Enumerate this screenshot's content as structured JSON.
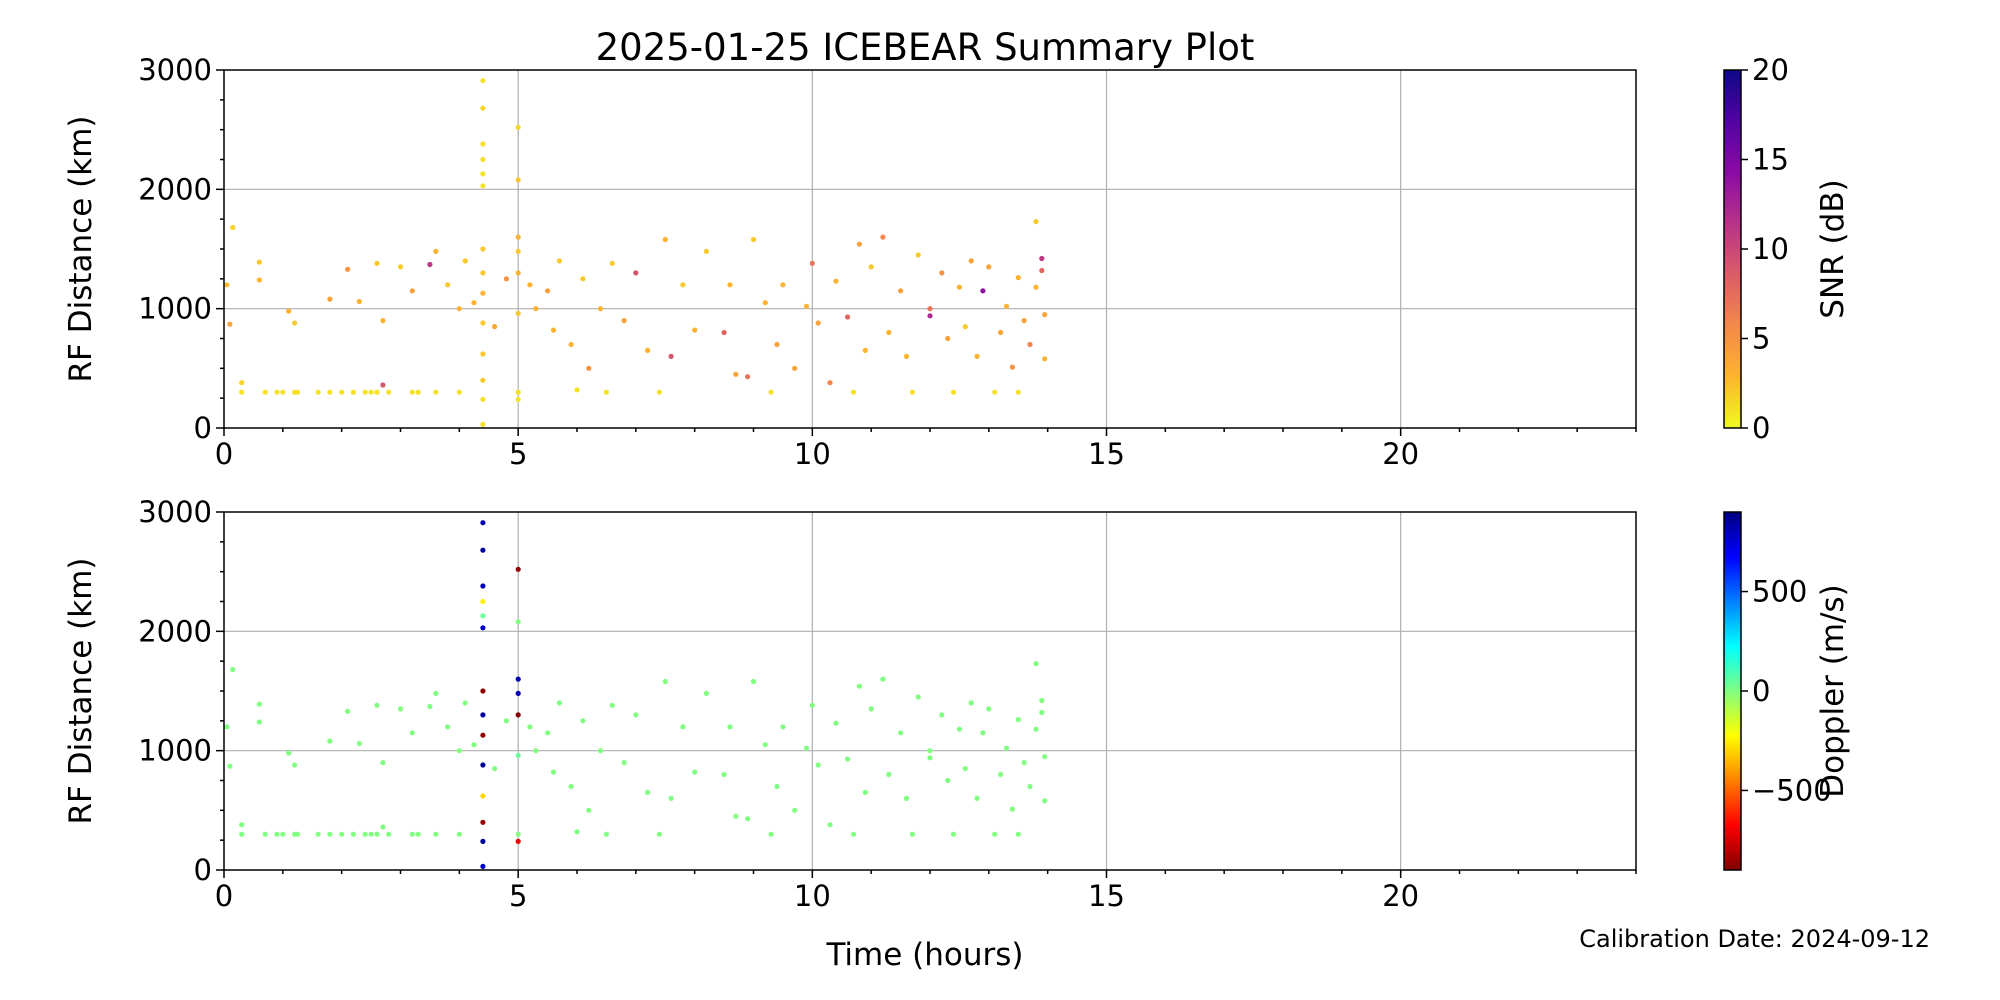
{
  "figure": {
    "title": "2025-01-25 ICEBEAR Summary Plot",
    "calibration_label": "Calibration Date: 2024-09-12"
  },
  "chart_data": [
    {
      "type": "scatter",
      "id": "snr",
      "ylabel": "RF Distance (km)",
      "xlabel": "",
      "xlim": [
        0,
        24
      ],
      "ylim": [
        0,
        3000
      ],
      "xticks": [
        0,
        5,
        10,
        15,
        20
      ],
      "yticks": [
        0,
        1000,
        2000,
        3000
      ],
      "grid": true,
      "colorbar": {
        "label": "SNR (dB)",
        "colormap": "plasma_r",
        "range": [
          0,
          20
        ],
        "ticks": [
          0,
          5,
          10,
          15,
          20
        ],
        "stops": [
          "#f0f921",
          "#fdb42f",
          "#f48849",
          "#db5c68",
          "#b83289",
          "#8b0aa5",
          "#5302a3",
          "#0d0887"
        ]
      },
      "points": [
        [
          0.05,
          1200,
          2.5
        ],
        [
          0.1,
          870,
          4
        ],
        [
          0.15,
          1680,
          1.5
        ],
        [
          0.6,
          1240,
          3
        ],
        [
          0.6,
          1390,
          2
        ],
        [
          0.3,
          380,
          1.5
        ],
        [
          0.3,
          300,
          1
        ],
        [
          0.7,
          300,
          1
        ],
        [
          0.9,
          300,
          1
        ],
        [
          1.0,
          300,
          1
        ],
        [
          1.2,
          300,
          1
        ],
        [
          1.25,
          300,
          1
        ],
        [
          1.6,
          300,
          1
        ],
        [
          1.8,
          300,
          1
        ],
        [
          2.0,
          300,
          1
        ],
        [
          2.2,
          300,
          1
        ],
        [
          2.4,
          300,
          1
        ],
        [
          2.5,
          300,
          1
        ],
        [
          2.6,
          300,
          1
        ],
        [
          2.8,
          300,
          1
        ],
        [
          3.2,
          300,
          1
        ],
        [
          3.3,
          300,
          1
        ],
        [
          3.6,
          300,
          1
        ],
        [
          4.0,
          300,
          1
        ],
        [
          2.7,
          360,
          9
        ],
        [
          1.1,
          980,
          3
        ],
        [
          1.2,
          880,
          2
        ],
        [
          1.8,
          1080,
          4
        ],
        [
          2.1,
          1330,
          5
        ],
        [
          2.3,
          1060,
          3
        ],
        [
          2.6,
          1380,
          2
        ],
        [
          2.7,
          900,
          3
        ],
        [
          3.0,
          1350,
          2
        ],
        [
          3.2,
          1150,
          4
        ],
        [
          3.5,
          1370,
          11
        ],
        [
          3.6,
          1480,
          3
        ],
        [
          3.8,
          1200,
          2
        ],
        [
          4.0,
          1000,
          3
        ],
        [
          4.1,
          1400,
          2
        ],
        [
          4.25,
          1050,
          3
        ],
        [
          4.4,
          2910,
          1
        ],
        [
          4.4,
          2680,
          1.5
        ],
        [
          4.4,
          2380,
          1
        ],
        [
          4.4,
          2250,
          1
        ],
        [
          4.4,
          2130,
          1
        ],
        [
          4.4,
          2030,
          1
        ],
        [
          4.4,
          1500,
          2
        ],
        [
          4.4,
          1300,
          2
        ],
        [
          4.4,
          1130,
          3
        ],
        [
          4.4,
          880,
          2
        ],
        [
          4.4,
          620,
          2
        ],
        [
          4.4,
          400,
          2
        ],
        [
          4.4,
          240,
          1
        ],
        [
          4.4,
          30,
          1
        ],
        [
          5.0,
          2520,
          1.5
        ],
        [
          5.0,
          2080,
          2
        ],
        [
          5.0,
          1600,
          3
        ],
        [
          5.0,
          1480,
          2
        ],
        [
          5.0,
          1300,
          3
        ],
        [
          5.0,
          960,
          2
        ],
        [
          5.0,
          300,
          1
        ],
        [
          5.0,
          240,
          1
        ],
        [
          4.6,
          850,
          4
        ],
        [
          4.8,
          1250,
          5
        ],
        [
          5.2,
          1200,
          3
        ],
        [
          5.3,
          1000,
          3
        ],
        [
          5.5,
          1150,
          4
        ],
        [
          5.6,
          820,
          3
        ],
        [
          5.7,
          1400,
          2
        ],
        [
          5.9,
          700,
          3
        ],
        [
          6.1,
          1250,
          2
        ],
        [
          6.2,
          500,
          5
        ],
        [
          6.4,
          1000,
          3
        ],
        [
          6.6,
          1380,
          2
        ],
        [
          6.8,
          900,
          4
        ],
        [
          7.0,
          1300,
          9
        ],
        [
          7.2,
          650,
          3
        ],
        [
          7.5,
          1580,
          3
        ],
        [
          7.6,
          600,
          9
        ],
        [
          7.8,
          1200,
          2
        ],
        [
          8.0,
          820,
          3
        ],
        [
          8.2,
          1480,
          2
        ],
        [
          8.5,
          800,
          8
        ],
        [
          8.6,
          1200,
          3
        ],
        [
          8.7,
          450,
          4
        ],
        [
          8.9,
          430,
          7
        ],
        [
          9.0,
          1580,
          2
        ],
        [
          9.2,
          1050,
          3
        ],
        [
          9.4,
          700,
          4
        ],
        [
          9.5,
          1200,
          3
        ],
        [
          9.7,
          500,
          4
        ],
        [
          9.9,
          1020,
          3
        ],
        [
          10.0,
          1380,
          7
        ],
        [
          10.1,
          880,
          4
        ],
        [
          10.3,
          380,
          6
        ],
        [
          10.4,
          1230,
          3
        ],
        [
          10.6,
          930,
          8
        ],
        [
          10.8,
          1540,
          4
        ],
        [
          10.9,
          650,
          3
        ],
        [
          11.0,
          1350,
          2
        ],
        [
          11.2,
          1600,
          6
        ],
        [
          11.3,
          800,
          3
        ],
        [
          11.5,
          1150,
          4
        ],
        [
          11.6,
          600,
          3
        ],
        [
          11.8,
          1450,
          2
        ],
        [
          12.0,
          1000,
          7
        ],
        [
          12.0,
          940,
          12
        ],
        [
          12.2,
          1300,
          5
        ],
        [
          12.3,
          750,
          4
        ],
        [
          12.5,
          1180,
          3
        ],
        [
          12.6,
          850,
          2
        ],
        [
          12.7,
          1400,
          4
        ],
        [
          12.8,
          600,
          3
        ],
        [
          12.9,
          1150,
          14
        ],
        [
          13.0,
          1350,
          4
        ],
        [
          13.2,
          800,
          4
        ],
        [
          13.3,
          1020,
          3
        ],
        [
          13.4,
          510,
          5
        ],
        [
          13.5,
          1260,
          3
        ],
        [
          13.6,
          900,
          4
        ],
        [
          13.7,
          700,
          6
        ],
        [
          13.8,
          1180,
          3
        ],
        [
          13.9,
          1320,
          8
        ],
        [
          13.9,
          1420,
          11
        ],
        [
          13.95,
          950,
          4
        ],
        [
          13.95,
          580,
          3
        ],
        [
          13.8,
          1730,
          2
        ],
        [
          6.0,
          320,
          1
        ],
        [
          6.5,
          300,
          1
        ],
        [
          7.4,
          300,
          1
        ],
        [
          9.3,
          300,
          1
        ],
        [
          10.7,
          300,
          1
        ],
        [
          11.7,
          300,
          1
        ],
        [
          12.4,
          300,
          1
        ],
        [
          13.1,
          300,
          1
        ],
        [
          13.5,
          300,
          1
        ]
      ]
    },
    {
      "type": "scatter",
      "id": "doppler",
      "ylabel": "RF Distance (km)",
      "xlabel": "Time (hours)",
      "xlim": [
        0,
        24
      ],
      "ylim": [
        0,
        3000
      ],
      "xticks": [
        0,
        5,
        10,
        15,
        20
      ],
      "yticks": [
        0,
        1000,
        2000,
        3000
      ],
      "grid": true,
      "colorbar": {
        "label": "Doppler (m/s)",
        "colormap": "jet_r",
        "range": [
          -900,
          900
        ],
        "ticks": [
          -500,
          0,
          500
        ],
        "tick_labels": [
          "−500",
          "0",
          "500"
        ],
        "stops": [
          "#800000",
          "#ff0000",
          "#ff8000",
          "#ffff00",
          "#80ff80",
          "#00ffff",
          "#0080ff",
          "#0000ff",
          "#000080"
        ]
      },
      "points": [
        [
          0.05,
          1200,
          0
        ],
        [
          0.1,
          870,
          0
        ],
        [
          0.15,
          1680,
          0
        ],
        [
          0.6,
          1240,
          0
        ],
        [
          0.6,
          1390,
          0
        ],
        [
          0.3,
          380,
          0
        ],
        [
          0.3,
          300,
          0
        ],
        [
          0.7,
          300,
          0
        ],
        [
          0.9,
          300,
          0
        ],
        [
          1.0,
          300,
          0
        ],
        [
          1.2,
          300,
          0
        ],
        [
          1.25,
          300,
          0
        ],
        [
          1.6,
          300,
          0
        ],
        [
          1.8,
          300,
          0
        ],
        [
          2.0,
          300,
          0
        ],
        [
          2.2,
          300,
          0
        ],
        [
          2.4,
          300,
          0
        ],
        [
          2.5,
          300,
          0
        ],
        [
          2.6,
          300,
          0
        ],
        [
          2.8,
          300,
          0
        ],
        [
          3.2,
          300,
          0
        ],
        [
          3.3,
          300,
          0
        ],
        [
          3.6,
          300,
          0
        ],
        [
          4.0,
          300,
          0
        ],
        [
          2.7,
          360,
          0
        ],
        [
          1.1,
          980,
          0
        ],
        [
          1.2,
          880,
          0
        ],
        [
          1.8,
          1080,
          0
        ],
        [
          2.1,
          1330,
          0
        ],
        [
          2.3,
          1060,
          0
        ],
        [
          2.6,
          1380,
          0
        ],
        [
          2.7,
          900,
          0
        ],
        [
          3.0,
          1350,
          0
        ],
        [
          3.2,
          1150,
          0
        ],
        [
          3.5,
          1370,
          0
        ],
        [
          3.6,
          1480,
          0
        ],
        [
          3.8,
          1200,
          0
        ],
        [
          4.0,
          1000,
          0
        ],
        [
          4.1,
          1400,
          0
        ],
        [
          4.25,
          1050,
          0
        ],
        [
          4.4,
          2910,
          820
        ],
        [
          4.4,
          2680,
          850
        ],
        [
          4.4,
          2380,
          800
        ],
        [
          4.4,
          2250,
          -250
        ],
        [
          4.4,
          2130,
          40
        ],
        [
          4.4,
          2030,
          780
        ],
        [
          4.4,
          1500,
          -880
        ],
        [
          4.4,
          1300,
          850
        ],
        [
          4.4,
          1130,
          -880
        ],
        [
          4.4,
          880,
          860
        ],
        [
          4.4,
          620,
          -300
        ],
        [
          4.4,
          400,
          -860
        ],
        [
          4.4,
          240,
          850
        ],
        [
          4.4,
          30,
          780
        ],
        [
          5.0,
          2520,
          -850
        ],
        [
          5.0,
          2080,
          0
        ],
        [
          5.0,
          1600,
          800
        ],
        [
          5.0,
          1480,
          800
        ],
        [
          5.0,
          1300,
          -880
        ],
        [
          5.0,
          960,
          40
        ],
        [
          5.0,
          300,
          0
        ],
        [
          5.0,
          240,
          -700
        ],
        [
          4.6,
          850,
          0
        ],
        [
          4.8,
          1250,
          0
        ],
        [
          5.2,
          1200,
          0
        ],
        [
          5.3,
          1000,
          0
        ],
        [
          5.5,
          1150,
          0
        ],
        [
          5.6,
          820,
          0
        ],
        [
          5.7,
          1400,
          0
        ],
        [
          5.9,
          700,
          0
        ],
        [
          6.1,
          1250,
          0
        ],
        [
          6.2,
          500,
          0
        ],
        [
          6.4,
          1000,
          0
        ],
        [
          6.6,
          1380,
          0
        ],
        [
          6.8,
          900,
          0
        ],
        [
          7.0,
          1300,
          0
        ],
        [
          7.2,
          650,
          0
        ],
        [
          7.5,
          1580,
          0
        ],
        [
          7.6,
          600,
          0
        ],
        [
          7.8,
          1200,
          0
        ],
        [
          8.0,
          820,
          0
        ],
        [
          8.2,
          1480,
          0
        ],
        [
          8.5,
          800,
          0
        ],
        [
          8.6,
          1200,
          0
        ],
        [
          8.7,
          450,
          0
        ],
        [
          8.9,
          430,
          0
        ],
        [
          9.0,
          1580,
          0
        ],
        [
          9.2,
          1050,
          0
        ],
        [
          9.4,
          700,
          0
        ],
        [
          9.5,
          1200,
          0
        ],
        [
          9.7,
          500,
          0
        ],
        [
          9.9,
          1020,
          0
        ],
        [
          10.0,
          1380,
          0
        ],
        [
          10.1,
          880,
          0
        ],
        [
          10.3,
          380,
          0
        ],
        [
          10.4,
          1230,
          0
        ],
        [
          10.6,
          930,
          0
        ],
        [
          10.8,
          1540,
          0
        ],
        [
          10.9,
          650,
          0
        ],
        [
          11.0,
          1350,
          0
        ],
        [
          11.2,
          1600,
          0
        ],
        [
          11.3,
          800,
          0
        ],
        [
          11.5,
          1150,
          0
        ],
        [
          11.6,
          600,
          0
        ],
        [
          11.8,
          1450,
          0
        ],
        [
          12.0,
          1000,
          0
        ],
        [
          12.0,
          940,
          0
        ],
        [
          12.2,
          1300,
          0
        ],
        [
          12.3,
          750,
          0
        ],
        [
          12.5,
          1180,
          0
        ],
        [
          12.6,
          850,
          0
        ],
        [
          12.7,
          1400,
          0
        ],
        [
          12.8,
          600,
          0
        ],
        [
          12.9,
          1150,
          0
        ],
        [
          13.0,
          1350,
          0
        ],
        [
          13.2,
          800,
          0
        ],
        [
          13.3,
          1020,
          0
        ],
        [
          13.4,
          510,
          0
        ],
        [
          13.5,
          1260,
          0
        ],
        [
          13.6,
          900,
          0
        ],
        [
          13.7,
          700,
          0
        ],
        [
          13.8,
          1180,
          0
        ],
        [
          13.9,
          1320,
          0
        ],
        [
          13.9,
          1420,
          0
        ],
        [
          13.95,
          950,
          0
        ],
        [
          13.95,
          580,
          0
        ],
        [
          13.8,
          1730,
          0
        ],
        [
          6.0,
          320,
          0
        ],
        [
          6.5,
          300,
          0
        ],
        [
          7.4,
          300,
          0
        ],
        [
          9.3,
          300,
          0
        ],
        [
          10.7,
          300,
          0
        ],
        [
          11.7,
          300,
          0
        ],
        [
          12.4,
          300,
          0
        ],
        [
          13.1,
          300,
          0
        ],
        [
          13.5,
          300,
          0
        ]
      ]
    }
  ]
}
